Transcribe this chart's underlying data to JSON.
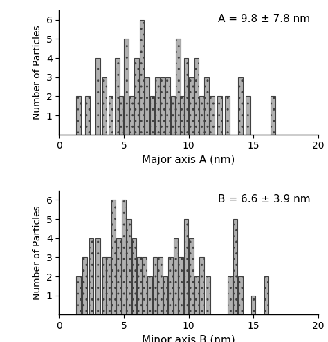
{
  "top": {
    "title": "A = 9.8 ± 7.8 nm",
    "xlabel": "Major axis A (nm)",
    "ylabel": "Number of Particles",
    "xlim": [
      0,
      20
    ],
    "ylim": [
      0,
      6.5
    ],
    "yticks": [
      1,
      2,
      3,
      4,
      5,
      6
    ],
    "xticks": [
      0,
      5,
      10,
      15,
      20
    ],
    "bar_positions": [
      1.5,
      2.2,
      3.0,
      3.5,
      4.0,
      4.5,
      4.8,
      5.2,
      5.6,
      6.0,
      6.4,
      6.8,
      7.2,
      7.6,
      8.0,
      8.4,
      8.8,
      9.2,
      9.5,
      9.8,
      10.2,
      10.6,
      11.0,
      11.4,
      11.8,
      12.4,
      13.0,
      14.0,
      14.6,
      16.5
    ],
    "bar_heights": [
      2,
      2,
      4,
      3,
      2,
      4,
      2,
      5,
      2,
      4,
      6,
      3,
      2,
      3,
      3,
      3,
      2,
      5,
      2,
      4,
      3,
      4,
      2,
      3,
      2,
      2,
      2,
      3,
      2,
      2
    ]
  },
  "bottom": {
    "title": "B = 6.6 ± 3.9 nm",
    "xlabel": "Minor axis B (nm)",
    "ylabel": "Number of Particles",
    "xlim": [
      0,
      20
    ],
    "ylim": [
      0,
      6.5
    ],
    "yticks": [
      1,
      2,
      3,
      4,
      5,
      6
    ],
    "xticks": [
      0,
      5,
      10,
      15,
      20
    ],
    "bar_positions": [
      1.5,
      2.0,
      2.5,
      3.0,
      3.5,
      3.8,
      4.2,
      4.6,
      5.0,
      5.4,
      5.8,
      6.2,
      6.6,
      7.0,
      7.4,
      7.8,
      8.2,
      8.6,
      9.0,
      9.4,
      9.8,
      10.2,
      10.6,
      11.0,
      11.5,
      13.2,
      13.6,
      14.0,
      15.0,
      16.0
    ],
    "bar_heights": [
      2,
      3,
      4,
      4,
      3,
      3,
      6,
      4,
      6,
      5,
      4,
      3,
      3,
      2,
      3,
      3,
      2,
      3,
      4,
      3,
      5,
      4,
      2,
      3,
      2,
      2,
      5,
      2,
      1,
      2
    ]
  },
  "bar_width": 0.35,
  "bar_color": "#b0b0b0",
  "bar_edgecolor": "#404040",
  "hatch": "..",
  "figsize": [
    4.74,
    4.95
  ],
  "dpi": 100
}
